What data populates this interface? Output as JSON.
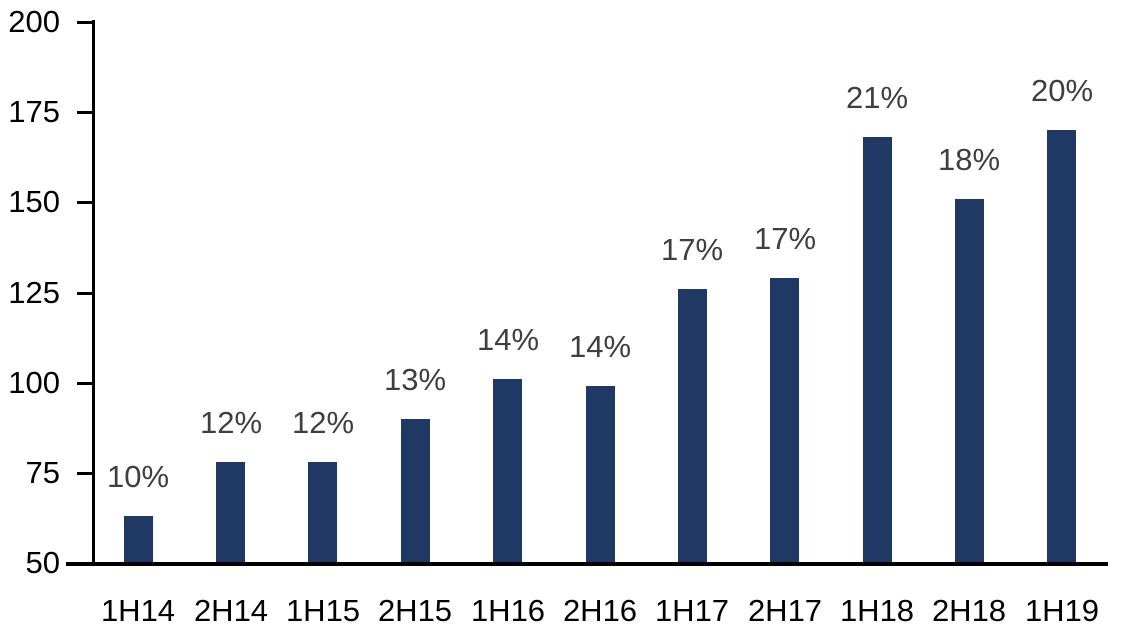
{
  "chart_data": {
    "type": "bar",
    "title": "",
    "xlabel": "",
    "ylabel": "",
    "categories": [
      "1H14",
      "2H14",
      "1H15",
      "2H15",
      "1H16",
      "2H16",
      "1H17",
      "2H17",
      "1H18",
      "2H18",
      "1H19"
    ],
    "values": [
      63,
      78,
      78,
      90,
      101,
      99,
      126,
      129,
      168,
      151,
      170
    ],
    "bar_labels": [
      "10%",
      "12%",
      "12%",
      "13%",
      "14%",
      "14%",
      "17%",
      "17%",
      "21%",
      "18%",
      "20%"
    ],
    "ylim": [
      50,
      200
    ],
    "yticks": [
      50,
      75,
      100,
      125,
      150,
      175,
      200
    ],
    "grid": false,
    "legend": false,
    "legend_position": "none"
  },
  "style": {
    "bar_color": "#1F3864",
    "bar_label_color": "#3F3F3F",
    "axis_color": "#000000",
    "tick_label_color": "#000000",
    "background_color": "#FFFFFF"
  }
}
